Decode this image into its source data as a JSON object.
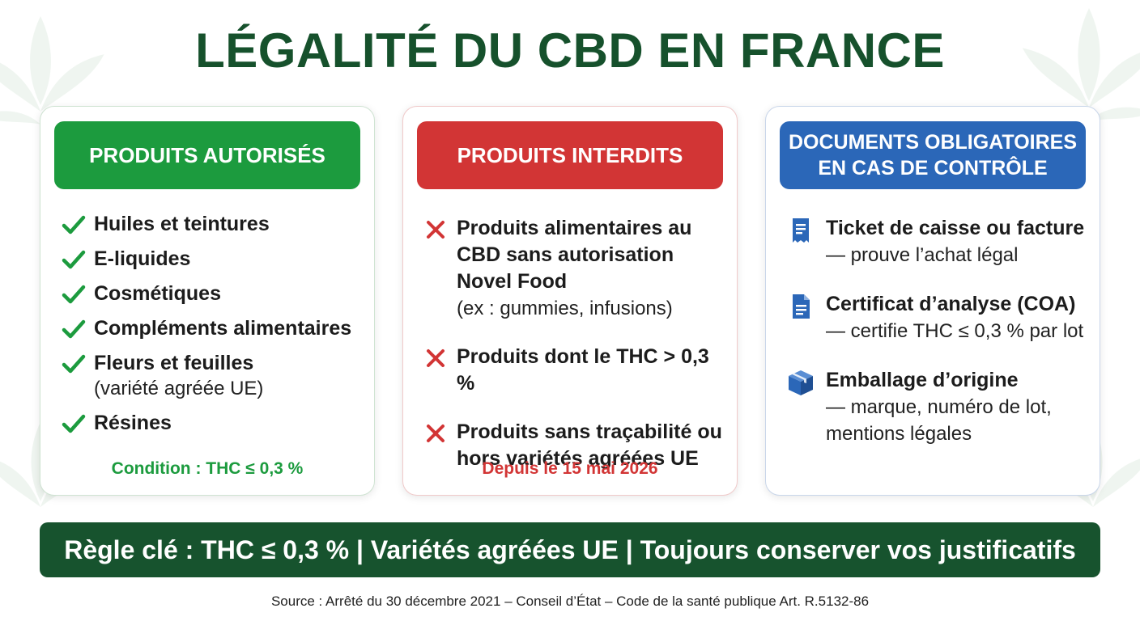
{
  "title": "LÉGALITÉ DU CBD EN FRANCE",
  "colors": {
    "green": "#1c9b3e",
    "red": "#d23535",
    "blue": "#2b67b8",
    "dark_green": "#17532e"
  },
  "authorized": {
    "header": "PRODUITS AUTORISÉS",
    "icon": "check-icon",
    "items": [
      {
        "main": "Huiles et teintures",
        "sub": ""
      },
      {
        "main": "E-liquides",
        "sub": ""
      },
      {
        "main": "Cosmétiques",
        "sub": ""
      },
      {
        "main": "Compléments alimentaires",
        "sub": ""
      },
      {
        "main": "Fleurs et feuilles",
        "sub": "(variété agréée UE)"
      },
      {
        "main": "Résines",
        "sub": ""
      }
    ],
    "footer": "Condition : THC ≤ 0,3 %"
  },
  "forbidden": {
    "header": "PRODUITS INTERDITS",
    "icon": "cross-icon",
    "items": [
      {
        "main": "Produits alimentaires au CBD sans autorisation Novel Food",
        "sub": "(ex : gummies, infusions)"
      },
      {
        "main": "Produits dont le THC > 0,3 %",
        "sub": ""
      },
      {
        "main": "Produits sans traçabilité ou hors variétés agréées UE",
        "sub": ""
      }
    ],
    "footer": "Depuis le 15 mai 2026"
  },
  "documents": {
    "header": "DOCUMENTS OBLIGATOIRES EN CAS DE CONTRÔLE",
    "items": [
      {
        "icon": "receipt-icon",
        "main": "Ticket de caisse ou facture",
        "sub": "— prouve l’achat légal"
      },
      {
        "icon": "document-icon",
        "main": "Certificat d’analyse (COA)",
        "sub": "— certifie THC ≤ 0,3 % par lot"
      },
      {
        "icon": "package-icon",
        "main": "Emballage d’origine",
        "sub": "— marque, numéro de lot, mentions légales"
      }
    ]
  },
  "banner": "Règle clé : THC ≤ 0,3 % | Variétés agréées UE | Toujours conserver vos justificatifs",
  "source": "Source : Arrêté du 30 décembre 2021 – Conseil d’État – Code de la santé publique Art. R.5132-86"
}
